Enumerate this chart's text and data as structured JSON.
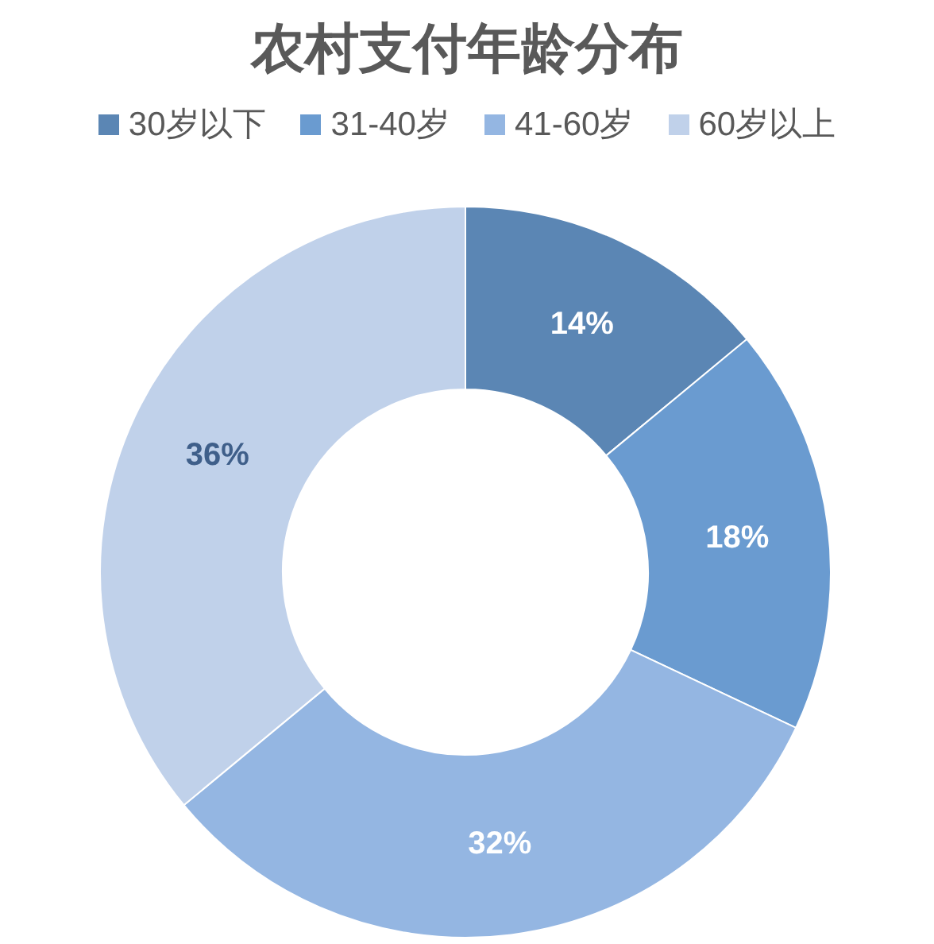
{
  "chart_data": {
    "type": "donut",
    "title": "农村支付年龄分布",
    "categories": [
      "30岁以下",
      "31-40岁",
      "41-60岁",
      "60岁以上"
    ],
    "values": [
      14,
      18,
      32,
      36
    ],
    "colors": [
      "#5b86b4",
      "#6a9bd0",
      "#94b6e2",
      "#c0d1ea"
    ],
    "value_labels": [
      "14%",
      "18%",
      "32%",
      "36%"
    ],
    "legend": "top"
  }
}
